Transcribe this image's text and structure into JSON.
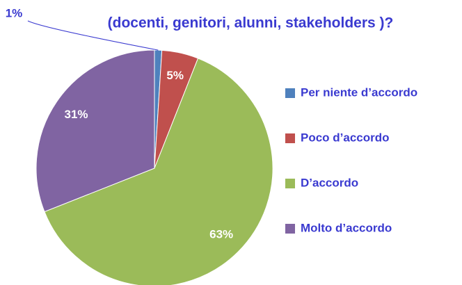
{
  "chart_data": {
    "type": "pie",
    "title": "(docenti, genitori, alunni, stakeholders )?",
    "categories": [
      "Per niente d’accordo",
      "Poco d’accordo",
      "D’accordo",
      "Molto d’accordo"
    ],
    "values": [
      1,
      5,
      63,
      31
    ],
    "value_labels": [
      "1%",
      "5%",
      "63%",
      "31%"
    ],
    "colors": [
      "#4f81bd",
      "#c0504d",
      "#9bbb59",
      "#8064a2"
    ],
    "legend": "right"
  }
}
